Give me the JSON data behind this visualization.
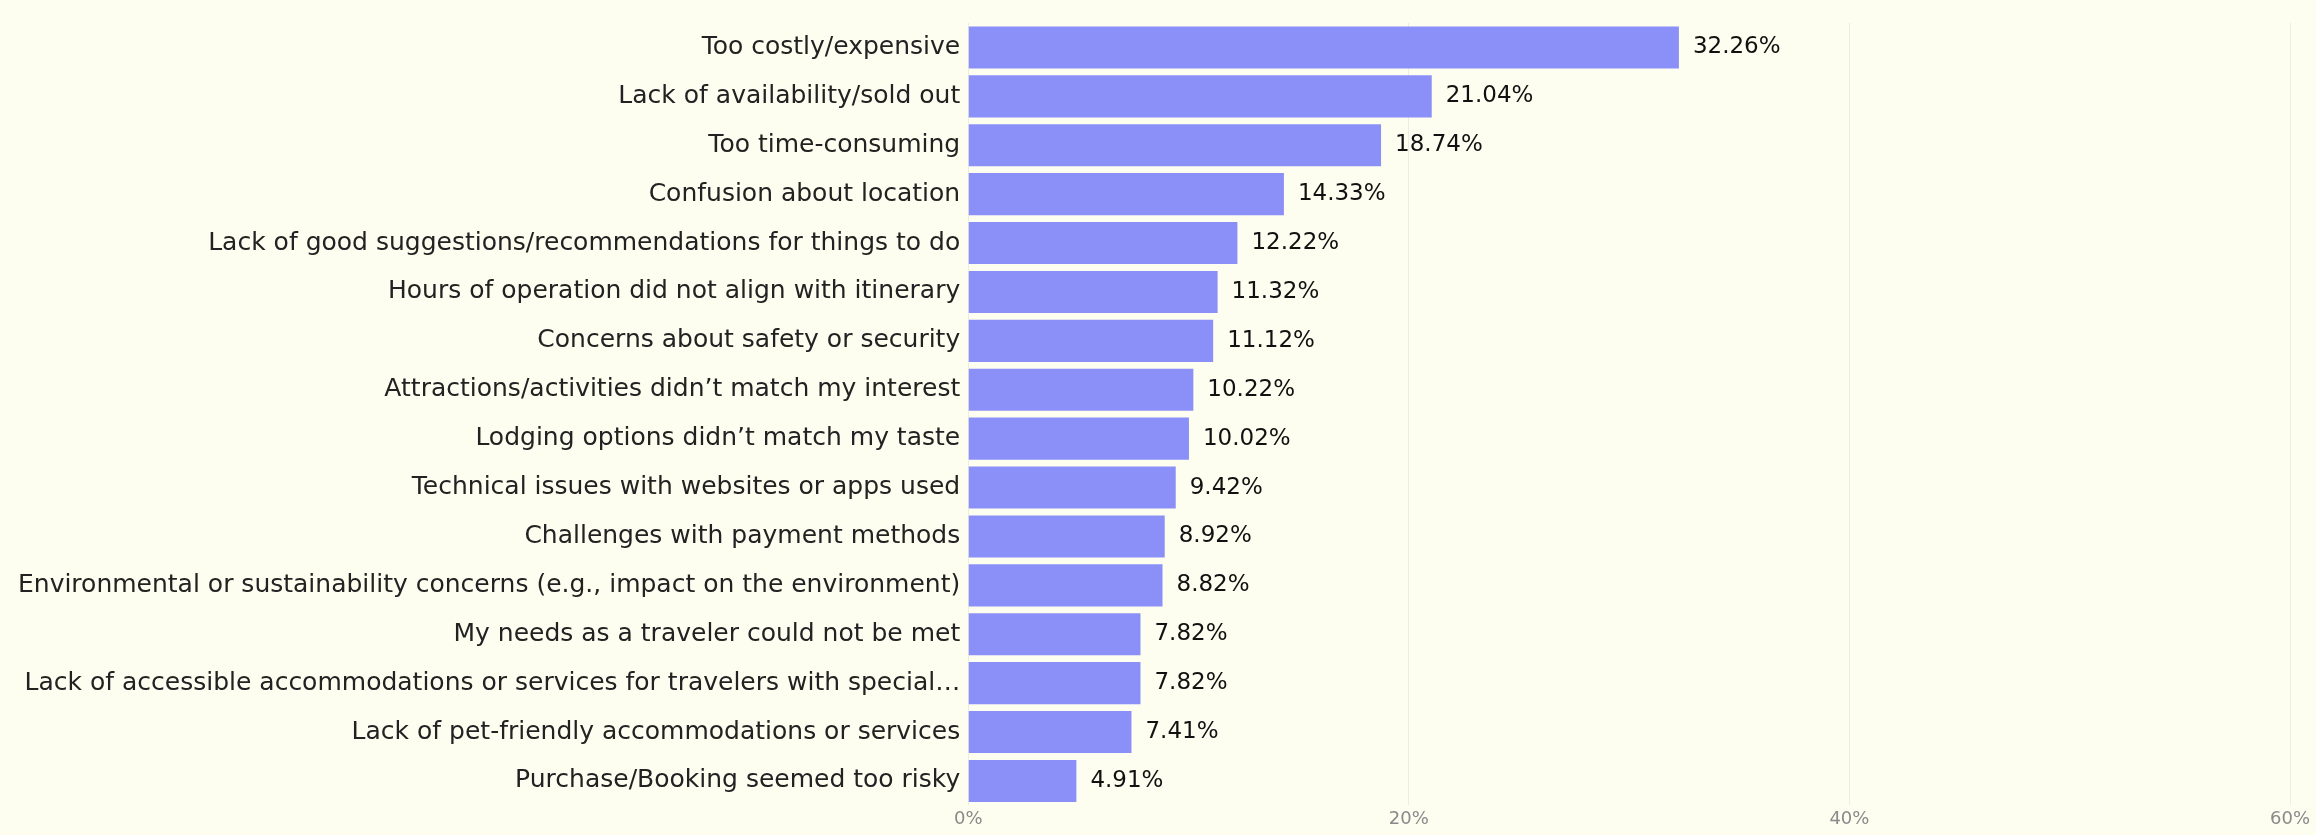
{
  "chart_data": {
    "type": "bar",
    "orientation": "horizontal",
    "categories": [
      "Too costly/expensive",
      "Lack of availability/sold out",
      "Too time-consuming",
      "Confusion about location",
      "Lack of good suggestions/recommendations for things to do",
      "Hours of operation did not align with itinerary",
      "Concerns about safety or security",
      "Attractions/activities didn’t match my interest",
      "Lodging options didn’t match my taste",
      "Technical issues with websites or apps used",
      "Challenges with payment methods",
      "Environmental or sustainability concerns (e.g., impact on the environment)",
      "My needs as a traveler could not be met",
      "Lack of accessible accommodations or services for travelers with special…",
      "Lack of pet-friendly accommodations or services",
      "Purchase/Booking seemed too risky"
    ],
    "values": [
      32.26,
      21.04,
      18.74,
      14.33,
      12.22,
      11.32,
      11.12,
      10.22,
      10.02,
      9.42,
      8.92,
      8.82,
      7.82,
      7.82,
      7.41,
      4.91
    ],
    "value_labels": [
      "32.26%",
      "21.04%",
      "18.74%",
      "14.33%",
      "12.22%",
      "11.32%",
      "11.12%",
      "10.22%",
      "10.02%",
      "9.42%",
      "8.92%",
      "8.82%",
      "7.82%",
      "7.82%",
      "7.41%",
      "4.91%"
    ],
    "color": "#8b8ff8",
    "xlim": [
      0,
      60
    ],
    "xticks": [
      {
        "value": 0,
        "label": "0%"
      },
      {
        "value": 20,
        "label": "20%"
      },
      {
        "value": 40,
        "label": "40%"
      },
      {
        "value": 60,
        "label": "60%"
      }
    ],
    "grid": "x"
  }
}
